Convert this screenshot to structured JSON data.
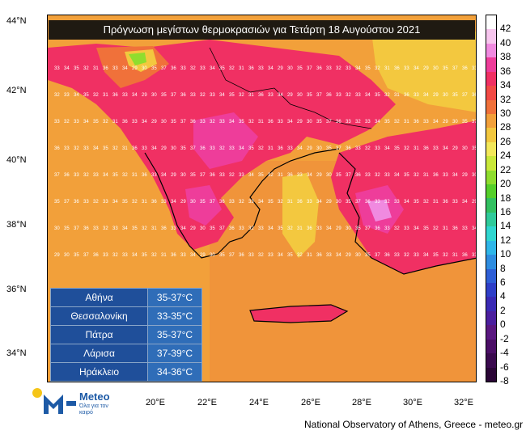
{
  "title": "Πρόγνωση μεγίστων θερμοκρασιών για Τετάρτη 18 Αυγούστου 2021",
  "lat_labels": [
    "44°N",
    "42°N",
    "40°N",
    "38°N",
    "36°N",
    "34°N"
  ],
  "lon_labels": [
    "20°E",
    "22°E",
    "24°E",
    "26°E",
    "28°E",
    "30°E",
    "32°E"
  ],
  "colorbar": {
    "labels": [
      "42",
      "40",
      "38",
      "36",
      "34",
      "32",
      "30",
      "28",
      "26",
      "24",
      "22",
      "20",
      "18",
      "16",
      "14",
      "12",
      "10",
      "8",
      "6",
      "4",
      "2",
      "0",
      "-2",
      "-4",
      "-6",
      "-8"
    ],
    "colors": [
      "#ffffff",
      "#f7c6ee",
      "#f08ae0",
      "#ee3d9a",
      "#f03063",
      "#f24a45",
      "#f0713a",
      "#f2a03a",
      "#f3c83f",
      "#f3e85a",
      "#c9e83a",
      "#8fdd2e",
      "#55cf2a",
      "#32c060",
      "#2fca9a",
      "#30d6d0",
      "#2fb6e8",
      "#2f8de0",
      "#2f5fd6",
      "#2f3fc8",
      "#3a2ab4",
      "#4b1f9e",
      "#5a1880",
      "#4b0f66",
      "#3a0a4e",
      "#2a0636"
    ]
  },
  "cities": [
    {
      "name": "Αθήνα",
      "temp": "35-37°C"
    },
    {
      "name": "Θεσσαλονίκη",
      "temp": "33-35°C"
    },
    {
      "name": "Πάτρα",
      "temp": "35-37°C"
    },
    {
      "name": "Λάρισα",
      "temp": "37-39°C"
    },
    {
      "name": "Ηράκλειο",
      "temp": "34-36°C"
    }
  ],
  "logo": {
    "name": "Meteo",
    "tagline": "Όλα για τον καιρό"
  },
  "credit": "National Observatory of Athens, Greece - meteo.gr"
}
